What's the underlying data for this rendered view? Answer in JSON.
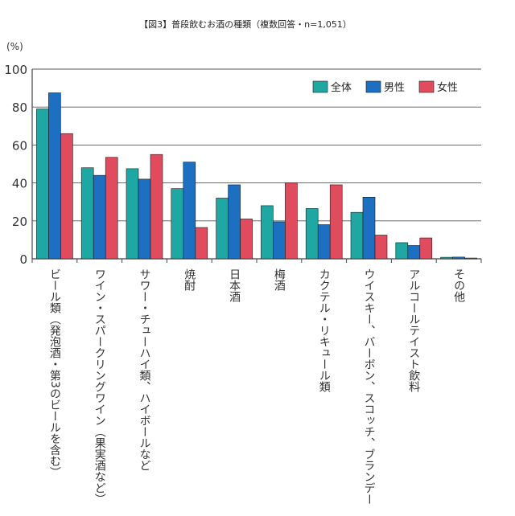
{
  "chart_data": {
    "type": "bar",
    "title": "【図3】普段飲むお酒の種類（複数回答・n=1,051）",
    "ylabel": "(%)",
    "xlabel": "",
    "ylim": [
      0,
      100
    ],
    "yticks": [
      0,
      20,
      40,
      60,
      80,
      100
    ],
    "grid": true,
    "legend_position": "top-right",
    "categories": [
      "ビール類（発泡酒・第3のビールを含む）",
      "ワイン・スパークリングワイン（果実酒など）",
      "サワー・チューハイ類、ハイボールなど",
      "焼酎",
      "日本酒",
      "梅酒",
      "カクテル・リキュール類",
      "ウイスキー、バーボン、スコッチ、ブランデー",
      "アルコールテイスト飲料",
      "その他"
    ],
    "series": [
      {
        "name": "全体",
        "color": "#1fa8a3",
        "values": [
          79,
          48,
          47.5,
          37,
          32,
          28,
          26.5,
          24.5,
          8.5,
          0.8
        ]
      },
      {
        "name": "男性",
        "color": "#1d6fc2",
        "values": [
          87.5,
          44,
          42,
          51,
          39,
          19.5,
          18,
          32.5,
          7,
          0.9
        ]
      },
      {
        "name": "女性",
        "color": "#e04b5e",
        "values": [
          66,
          53.5,
          55,
          16.5,
          21,
          40,
          39,
          12.5,
          11,
          0.4
        ]
      }
    ]
  }
}
